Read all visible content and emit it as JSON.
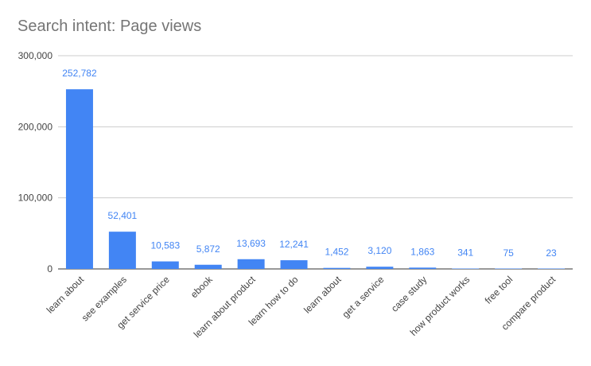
{
  "chart_data": {
    "type": "bar",
    "title": "Search intent: Page views",
    "xlabel": "",
    "ylabel": "",
    "ylim": [
      0,
      300000
    ],
    "yticks": [
      0,
      100000,
      200000,
      300000
    ],
    "ytick_labels": [
      "0",
      "100,000",
      "200,000",
      "300,000"
    ],
    "grid": true,
    "categories": [
      "learn about",
      "see examples",
      "get service price",
      "ebook",
      "learn about product",
      "learn how to do",
      "learn  about",
      "get a service",
      "case study",
      "how product works",
      "free tool",
      "compare product"
    ],
    "values": [
      252782,
      52401,
      10583,
      5872,
      13693,
      12241,
      1452,
      3120,
      1863,
      341,
      75,
      23
    ],
    "value_labels": [
      "252,782",
      "52,401",
      "10,583",
      "5,872",
      "13,693",
      "12,241",
      "1,452",
      "3,120",
      "1,863",
      "341",
      "75",
      "23"
    ],
    "colors": {
      "bar": "#4285f4",
      "grid": "#cccccc",
      "axis": "#333333"
    }
  }
}
